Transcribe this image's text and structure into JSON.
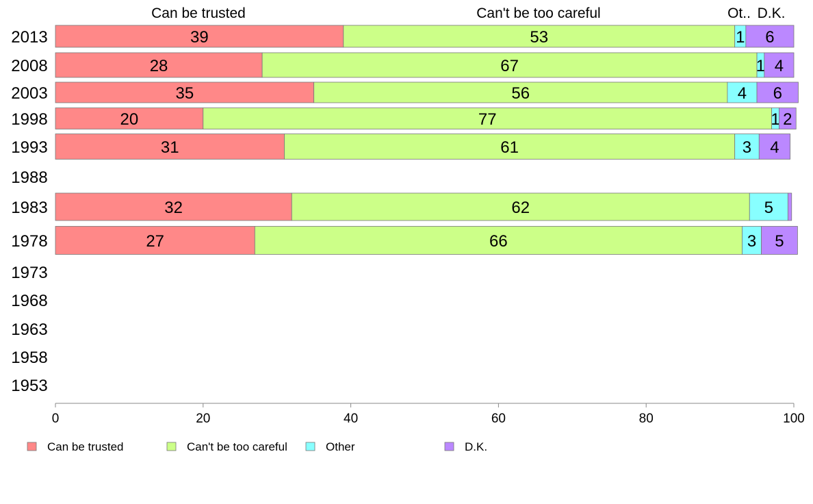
{
  "chart_data": {
    "type": "bar",
    "orientation": "horizontal",
    "stacked": true,
    "categories": [
      "2013",
      "2008",
      "2003",
      "1998",
      "1993",
      "1988",
      "1983",
      "1978",
      "1973",
      "1968",
      "1963",
      "1958",
      "1953"
    ],
    "series": [
      {
        "name": "Can be trusted",
        "color": "#ff8888",
        "values": [
          39,
          28,
          35,
          20,
          31,
          null,
          32,
          27,
          null,
          null,
          null,
          null,
          null
        ]
      },
      {
        "name": "Can't be too careful",
        "color": "#ccff88",
        "values": [
          53,
          67,
          56,
          77,
          61,
          null,
          62,
          66,
          null,
          null,
          null,
          null,
          null
        ]
      },
      {
        "name": "Other",
        "color": "#88ffff",
        "values": [
          1.5,
          1,
          4,
          1,
          3.3,
          null,
          5.2,
          2.6,
          null,
          null,
          null,
          null,
          null
        ]
      },
      {
        "name": "D.K.",
        "color": "#bb88ff",
        "values": [
          6.5,
          4,
          5.6,
          2.3,
          4.2,
          null,
          0.5,
          4.9,
          null,
          null,
          null,
          null,
          null
        ]
      }
    ],
    "data_labels": [
      [
        "39",
        "53",
        "1",
        "6"
      ],
      [
        "28",
        "67",
        "1",
        "4"
      ],
      [
        "35",
        "56",
        "4",
        "6"
      ],
      [
        "20",
        "77",
        "1",
        "2"
      ],
      [
        "31",
        "61",
        "3",
        "4"
      ],
      [
        "",
        "",
        "",
        ""
      ],
      [
        "32",
        "62",
        "5",
        ""
      ],
      [
        "27",
        "66",
        "3",
        "5"
      ],
      [
        "",
        "",
        "",
        ""
      ],
      [
        "",
        "",
        "",
        ""
      ],
      [
        "",
        "",
        "",
        ""
      ],
      [
        "",
        "",
        "",
        ""
      ],
      [
        "",
        "",
        "",
        ""
      ]
    ],
    "column_headers": [
      "Can be trusted",
      "Can't be too careful",
      "Ot..",
      "D.K."
    ],
    "xlim": [
      0,
      100
    ],
    "xticks": [
      "0",
      "20",
      "40",
      "60",
      "80",
      "100"
    ],
    "title": "",
    "xlabel": "",
    "ylabel": "",
    "grid": false,
    "legend": {
      "position": "bottom",
      "labels": [
        "Can be trusted",
        "Can't be too careful",
        "Other",
        "D.K."
      ]
    }
  }
}
